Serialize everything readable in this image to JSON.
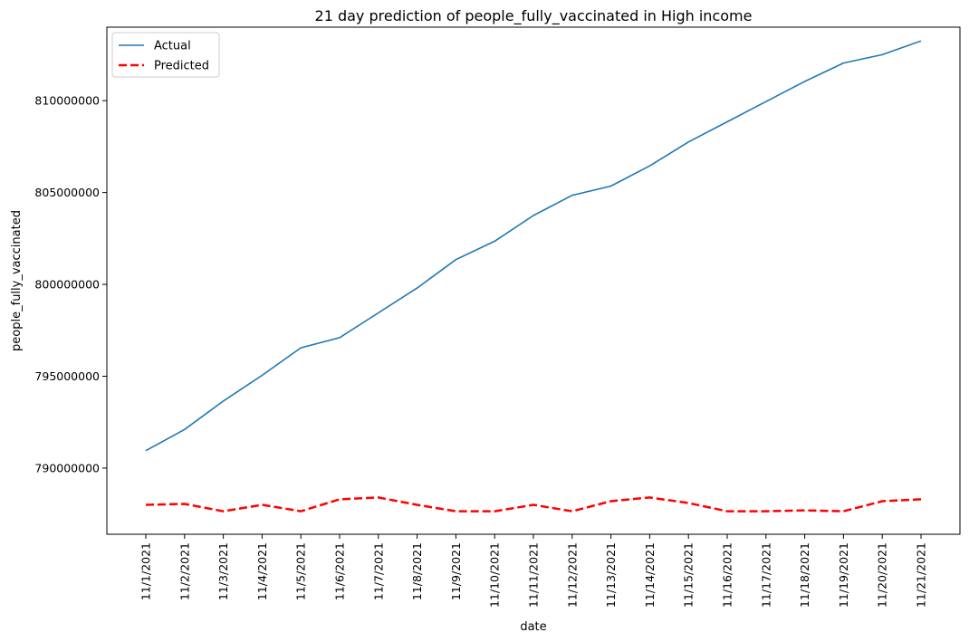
{
  "chart_data": {
    "type": "line",
    "title": "21 day prediction of people_fully_vaccinated in High income",
    "xlabel": "date",
    "ylabel": "people_fully_vaccinated",
    "categories": [
      "11/1/2021",
      "11/2/2021",
      "11/3/2021",
      "11/4/2021",
      "11/5/2021",
      "11/6/2021",
      "11/7/2021",
      "11/8/2021",
      "11/9/2021",
      "11/10/2021",
      "11/11/2021",
      "11/12/2021",
      "11/13/2021",
      "11/14/2021",
      "11/15/2021",
      "11/16/2021",
      "11/17/2021",
      "11/18/2021",
      "11/19/2021",
      "11/20/2021",
      "11/21/2021"
    ],
    "y_ticks": [
      790000000,
      795000000,
      800000000,
      805000000,
      810000000
    ],
    "y_tick_labels": [
      "790000000",
      "795000000",
      "800000000",
      "805000000",
      "810000000"
    ],
    "ylim": [
      786400000,
      814000000
    ],
    "grid": false,
    "legend_position": "top-left",
    "series": [
      {
        "name": "Actual",
        "color": "#1f77b4",
        "style": "solid",
        "values": [
          790950000,
          792100000,
          793650000,
          795050000,
          796550000,
          797100000,
          798450000,
          799800000,
          801350000,
          802350000,
          803750000,
          804850000,
          805350000,
          806450000,
          807750000,
          808850000,
          809950000,
          811050000,
          812050000,
          812500000,
          813250000
        ]
      },
      {
        "name": "Predicted",
        "color": "#ff0000",
        "style": "dashed",
        "values": [
          788000000,
          788050000,
          787650000,
          788000000,
          787650000,
          788300000,
          788400000,
          788000000,
          787650000,
          787650000,
          788000000,
          787650000,
          788200000,
          788400000,
          788100000,
          787650000,
          787650000,
          787700000,
          787650000,
          788200000,
          788300000
        ]
      }
    ]
  }
}
